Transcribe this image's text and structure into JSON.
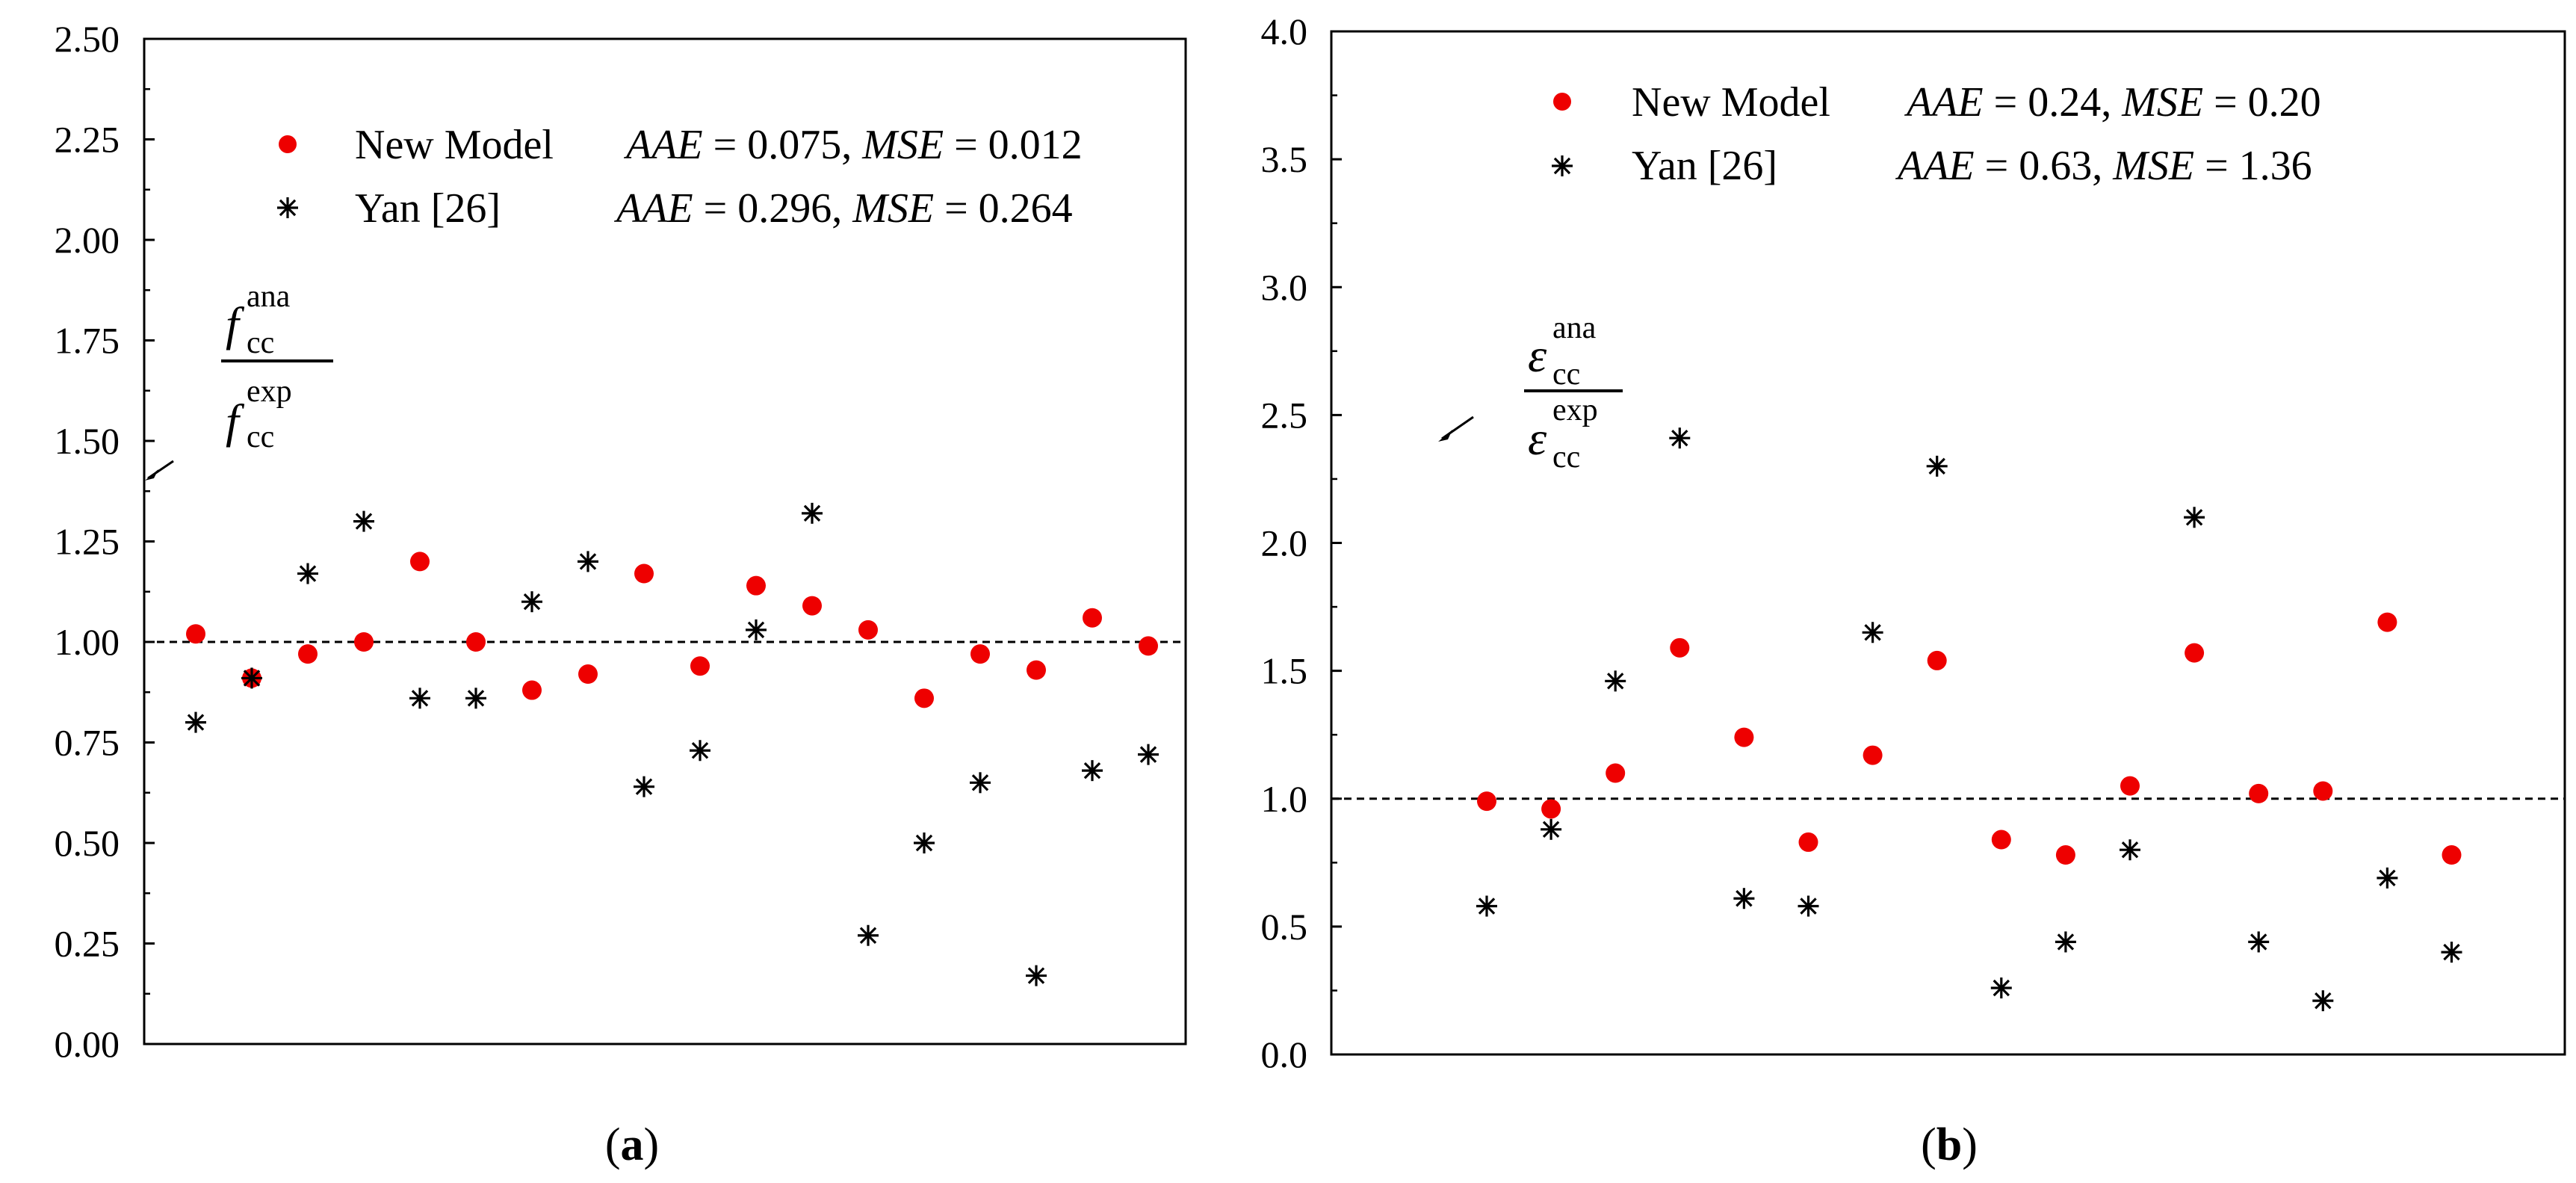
{
  "chart_data": [
    {
      "type": "scatter",
      "panel_label": "a",
      "ylim": [
        0,
        2.5
      ],
      "yticks": [
        "0.00",
        "0.25",
        "0.50",
        "0.75",
        "1.00",
        "1.25",
        "1.50",
        "1.75",
        "2.00",
        "2.25",
        "2.50"
      ],
      "reference_line": 1.0,
      "ratio_label": {
        "symbol": "f",
        "sub": "cc",
        "num_sup": "ana",
        "den_sup": "exp"
      },
      "x": [
        1,
        2,
        3,
        4,
        5,
        6,
        7,
        8,
        9,
        10,
        11,
        12,
        13,
        14,
        15,
        16,
        17,
        18
      ],
      "series": [
        {
          "name": "New Model",
          "marker": "circle",
          "color": "#ee0000",
          "stats": {
            "aae_label": "AAE",
            "aae": "0.075",
            "mse_label": "MSE",
            "mse": "0.012"
          },
          "values": [
            1.02,
            0.91,
            0.97,
            1.0,
            1.2,
            1.0,
            0.88,
            0.92,
            1.17,
            0.94,
            1.14,
            1.09,
            1.03,
            0.86,
            0.97,
            0.93,
            1.06,
            0.99
          ]
        },
        {
          "name": "Yan [26]",
          "marker": "asterisk",
          "color": "#000000",
          "stats": {
            "aae_label": "AAE",
            "aae": "0.296",
            "mse_label": "MSE",
            "mse": "0.264"
          },
          "values": [
            0.8,
            0.91,
            1.17,
            1.3,
            0.86,
            0.86,
            1.1,
            1.2,
            0.64,
            0.73,
            1.03,
            1.32,
            0.27,
            0.5,
            0.65,
            0.17,
            0.68,
            0.72
          ]
        }
      ]
    },
    {
      "type": "scatter",
      "panel_label": "b",
      "ylim": [
        0,
        4.0
      ],
      "yticks": [
        "0.0",
        "0.5",
        "1.0",
        "1.5",
        "2.0",
        "2.5",
        "3.0",
        "3.5",
        "4.0"
      ],
      "reference_line": 1.0,
      "ratio_label": {
        "symbol": "ε",
        "sub": "cc",
        "num_sup": "ana",
        "den_sup": "exp"
      },
      "x": [
        1,
        2,
        3,
        4,
        5,
        6,
        7,
        8,
        9,
        10,
        11,
        12,
        13,
        14,
        15,
        16
      ],
      "series": [
        {
          "name": "New Model",
          "marker": "circle",
          "color": "#ee0000",
          "stats": {
            "aae_label": "AAE",
            "aae": "0.24",
            "mse_label": "MSE",
            "mse": "0.20"
          },
          "values": [
            0.99,
            0.96,
            1.1,
            1.59,
            1.24,
            0.83,
            1.17,
            1.54,
            0.84,
            0.78,
            1.05,
            1.57,
            1.02,
            1.03,
            1.69,
            0.78
          ]
        },
        {
          "name": "Yan [26]",
          "marker": "asterisk",
          "color": "#000000",
          "stats": {
            "aae_label": "AAE",
            "aae": "0.63",
            "mse_label": "MSE",
            "mse": "1.36"
          },
          "values": [
            0.58,
            0.88,
            1.46,
            2.41,
            0.61,
            0.58,
            1.65,
            2.3,
            0.26,
            0.44,
            0.8,
            2.1,
            0.44,
            0.21,
            0.69,
            0.4
          ]
        }
      ]
    }
  ]
}
